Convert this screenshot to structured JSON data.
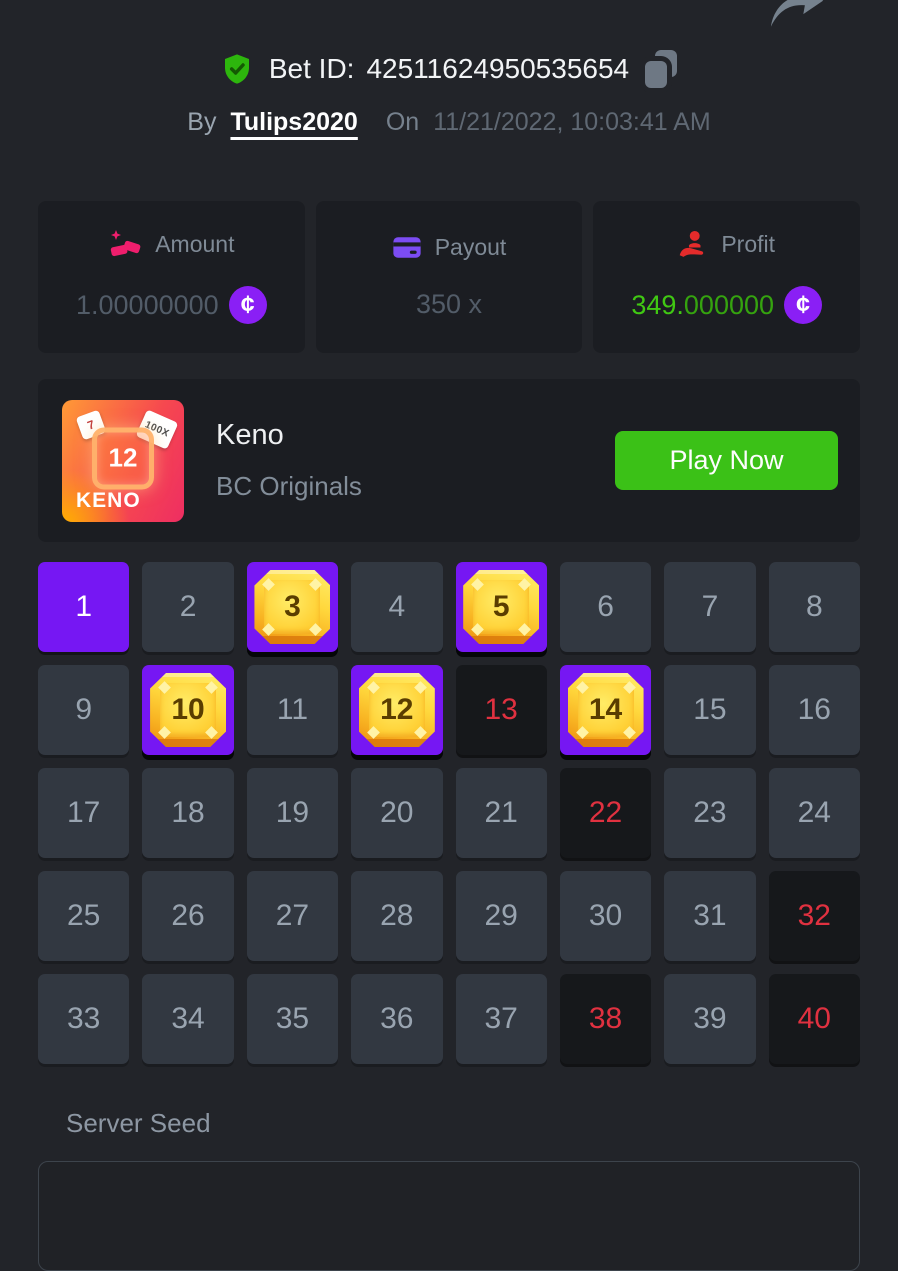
{
  "header": {
    "bet_id_label": "Bet ID:",
    "bet_id_value": "42511624950535654",
    "by_label": "By",
    "username": "Tulips2020",
    "on_label": "On",
    "datetime": "11/21/2022, 10:03:41 AM"
  },
  "stats": {
    "amount": {
      "label": "Amount",
      "value": "1.00000000",
      "icon": "gold-ingots-icon",
      "icon_color": "#ef1e6d",
      "currency": "coin-icon",
      "currency_symbol": "¢"
    },
    "payout": {
      "label": "Payout",
      "value": "350 x",
      "icon": "credit-card-icon",
      "icon_color": "#7c4cf3"
    },
    "profit": {
      "label": "Profit",
      "value_main": "349.",
      "value_zeros": "000000",
      "icon": "hand-holding-person-icon",
      "icon_color": "#e42b2b",
      "value_color": "#40c813",
      "currency": "coin-icon",
      "currency_symbol": "¢"
    }
  },
  "game": {
    "title": "Keno",
    "provider": "BC Originals",
    "play_button": "Play Now",
    "tile": {
      "label": "KENO",
      "gem_number": "12",
      "mini_left": "7",
      "mini_right": "100X"
    }
  },
  "grid": {
    "columns": 8,
    "legend": {
      "selected": "picked",
      "hit": "picked and drawn (gem)",
      "miss": "drawn not picked (red)"
    },
    "cells": [
      {
        "n": "1",
        "state": "selected"
      },
      {
        "n": "2",
        "state": "default"
      },
      {
        "n": "3",
        "state": "hit"
      },
      {
        "n": "4",
        "state": "default"
      },
      {
        "n": "5",
        "state": "hit"
      },
      {
        "n": "6",
        "state": "default"
      },
      {
        "n": "7",
        "state": "default"
      },
      {
        "n": "8",
        "state": "default"
      },
      {
        "n": "9",
        "state": "default"
      },
      {
        "n": "10",
        "state": "hit"
      },
      {
        "n": "11",
        "state": "default"
      },
      {
        "n": "12",
        "state": "hit"
      },
      {
        "n": "13",
        "state": "miss"
      },
      {
        "n": "14",
        "state": "hit"
      },
      {
        "n": "15",
        "state": "default"
      },
      {
        "n": "16",
        "state": "default"
      },
      {
        "n": "17",
        "state": "default"
      },
      {
        "n": "18",
        "state": "default"
      },
      {
        "n": "19",
        "state": "default"
      },
      {
        "n": "20",
        "state": "default"
      },
      {
        "n": "21",
        "state": "default"
      },
      {
        "n": "22",
        "state": "miss"
      },
      {
        "n": "23",
        "state": "default"
      },
      {
        "n": "24",
        "state": "default"
      },
      {
        "n": "25",
        "state": "default"
      },
      {
        "n": "26",
        "state": "default"
      },
      {
        "n": "27",
        "state": "default"
      },
      {
        "n": "28",
        "state": "default"
      },
      {
        "n": "29",
        "state": "default"
      },
      {
        "n": "30",
        "state": "default"
      },
      {
        "n": "31",
        "state": "default"
      },
      {
        "n": "32",
        "state": "miss"
      },
      {
        "n": "33",
        "state": "default"
      },
      {
        "n": "34",
        "state": "default"
      },
      {
        "n": "35",
        "state": "default"
      },
      {
        "n": "36",
        "state": "default"
      },
      {
        "n": "37",
        "state": "default"
      },
      {
        "n": "38",
        "state": "miss"
      },
      {
        "n": "39",
        "state": "default"
      },
      {
        "n": "40",
        "state": "miss"
      }
    ]
  },
  "seed": {
    "label": "Server Seed",
    "value": ""
  },
  "colors": {
    "accent_purple": "#7617f3",
    "coin_purple": "#8a1ff5",
    "play_green": "#3bc117",
    "profit_green": "#40c813",
    "miss_red": "#e03140",
    "brand_pink": "#ef1e6d",
    "verified_green": "#2db60d"
  }
}
